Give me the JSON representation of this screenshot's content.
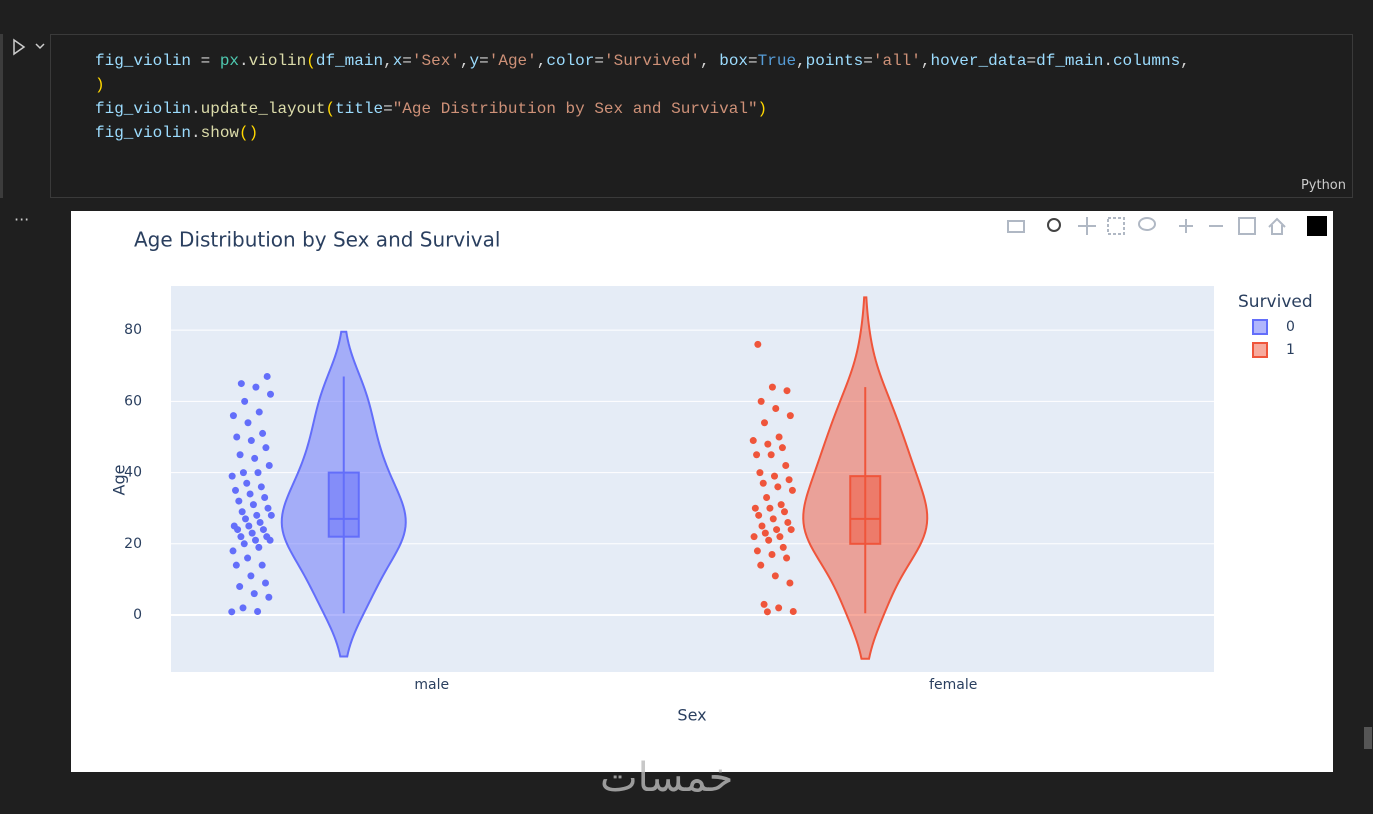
{
  "cell": {
    "language": "Python",
    "lines": [
      [
        {
          "text": "fig_violin",
          "color": "#9cdcfe"
        },
        {
          "text": " = ",
          "color": "#d4d4d4"
        },
        {
          "text": "px",
          "color": "#4ec9b0"
        },
        {
          "text": ".",
          "color": "#d4d4d4"
        },
        {
          "text": "violin",
          "color": "#dcdcaa"
        },
        {
          "text": "(",
          "color": "#ffd700"
        },
        {
          "text": "df_main",
          "color": "#9cdcfe"
        },
        {
          "text": ",",
          "color": "#d4d4d4"
        },
        {
          "text": "x",
          "color": "#9cdcfe"
        },
        {
          "text": "=",
          "color": "#d4d4d4"
        },
        {
          "text": "'Sex'",
          "color": "#ce9178"
        },
        {
          "text": ",",
          "color": "#d4d4d4"
        },
        {
          "text": "y",
          "color": "#9cdcfe"
        },
        {
          "text": "=",
          "color": "#d4d4d4"
        },
        {
          "text": "'Age'",
          "color": "#ce9178"
        },
        {
          "text": ",",
          "color": "#d4d4d4"
        },
        {
          "text": "color",
          "color": "#9cdcfe"
        },
        {
          "text": "=",
          "color": "#d4d4d4"
        },
        {
          "text": "'Survived'",
          "color": "#ce9178"
        },
        {
          "text": ", ",
          "color": "#d4d4d4"
        },
        {
          "text": "box",
          "color": "#9cdcfe"
        },
        {
          "text": "=",
          "color": "#d4d4d4"
        },
        {
          "text": "True",
          "color": "#569cd6"
        },
        {
          "text": ",",
          "color": "#d4d4d4"
        },
        {
          "text": "points",
          "color": "#9cdcfe"
        },
        {
          "text": "=",
          "color": "#d4d4d4"
        },
        {
          "text": "'all'",
          "color": "#ce9178"
        },
        {
          "text": ",",
          "color": "#d4d4d4"
        },
        {
          "text": "hover_data",
          "color": "#9cdcfe"
        },
        {
          "text": "=",
          "color": "#d4d4d4"
        },
        {
          "text": "df_main",
          "color": "#9cdcfe"
        },
        {
          "text": ".",
          "color": "#d4d4d4"
        },
        {
          "text": "columns",
          "color": "#9cdcfe"
        },
        {
          "text": ",",
          "color": "#d4d4d4"
        }
      ],
      [
        {
          "text": ")",
          "color": "#ffd700"
        }
      ],
      [
        {
          "text": "fig_violin",
          "color": "#9cdcfe"
        },
        {
          "text": ".",
          "color": "#d4d4d4"
        },
        {
          "text": "update_layout",
          "color": "#dcdcaa"
        },
        {
          "text": "(",
          "color": "#ffd700"
        },
        {
          "text": "title",
          "color": "#9cdcfe"
        },
        {
          "text": "=",
          "color": "#d4d4d4"
        },
        {
          "text": "\"Age Distribution by Sex and Survival\"",
          "color": "#ce9178"
        },
        {
          "text": ")",
          "color": "#ffd700"
        }
      ],
      [
        {
          "text": "fig_violin",
          "color": "#9cdcfe"
        },
        {
          "text": ".",
          "color": "#d4d4d4"
        },
        {
          "text": "show",
          "color": "#dcdcaa"
        },
        {
          "text": "()",
          "color": "#ffd700"
        }
      ]
    ]
  },
  "chart_data": {
    "type": "violin",
    "title": "Age Distribution by Sex and Survival",
    "x_label": "Sex",
    "y_label": "Age",
    "categories": [
      "male",
      "female"
    ],
    "ylim": [
      -16,
      92.4
    ],
    "yticks": [
      0,
      20,
      40,
      60,
      80
    ],
    "grid": true,
    "legend_title": "Survived",
    "legend": "right",
    "series": [
      {
        "name": "0",
        "color": "#636efa",
        "category": 0,
        "box": {
          "lowerfence": 0.5,
          "q1": 22,
          "median": 27,
          "q3": 40,
          "upperfence": 67
        },
        "points": [
          0.9,
          1,
          2,
          5,
          6,
          8,
          9,
          11,
          14,
          14,
          16,
          18,
          19,
          20,
          21,
          21,
          22,
          22,
          23,
          24,
          24,
          25,
          25,
          26,
          27,
          28,
          28,
          29,
          30,
          31,
          32,
          33,
          34,
          35,
          36,
          37,
          39,
          40,
          40,
          42,
          44,
          45,
          47,
          49,
          50,
          51,
          54,
          56,
          57,
          60,
          62,
          64,
          65,
          67
        ]
      },
      {
        "name": "1",
        "color": "#EF553B",
        "category": 1,
        "box": {
          "lowerfence": 0.5,
          "q1": 20,
          "median": 27,
          "q3": 39,
          "upperfence": 64
        },
        "points": [
          0.9,
          1,
          2,
          3,
          9,
          11,
          14,
          16,
          17,
          18,
          19,
          21,
          22,
          22,
          23,
          24,
          24,
          25,
          26,
          27,
          28,
          29,
          30,
          30,
          31,
          33,
          35,
          36,
          37,
          38,
          39,
          40,
          42,
          45,
          45,
          47,
          48,
          49,
          50,
          54,
          56,
          58,
          60,
          63,
          64,
          76
        ]
      }
    ]
  },
  "watermark": "خمسات"
}
